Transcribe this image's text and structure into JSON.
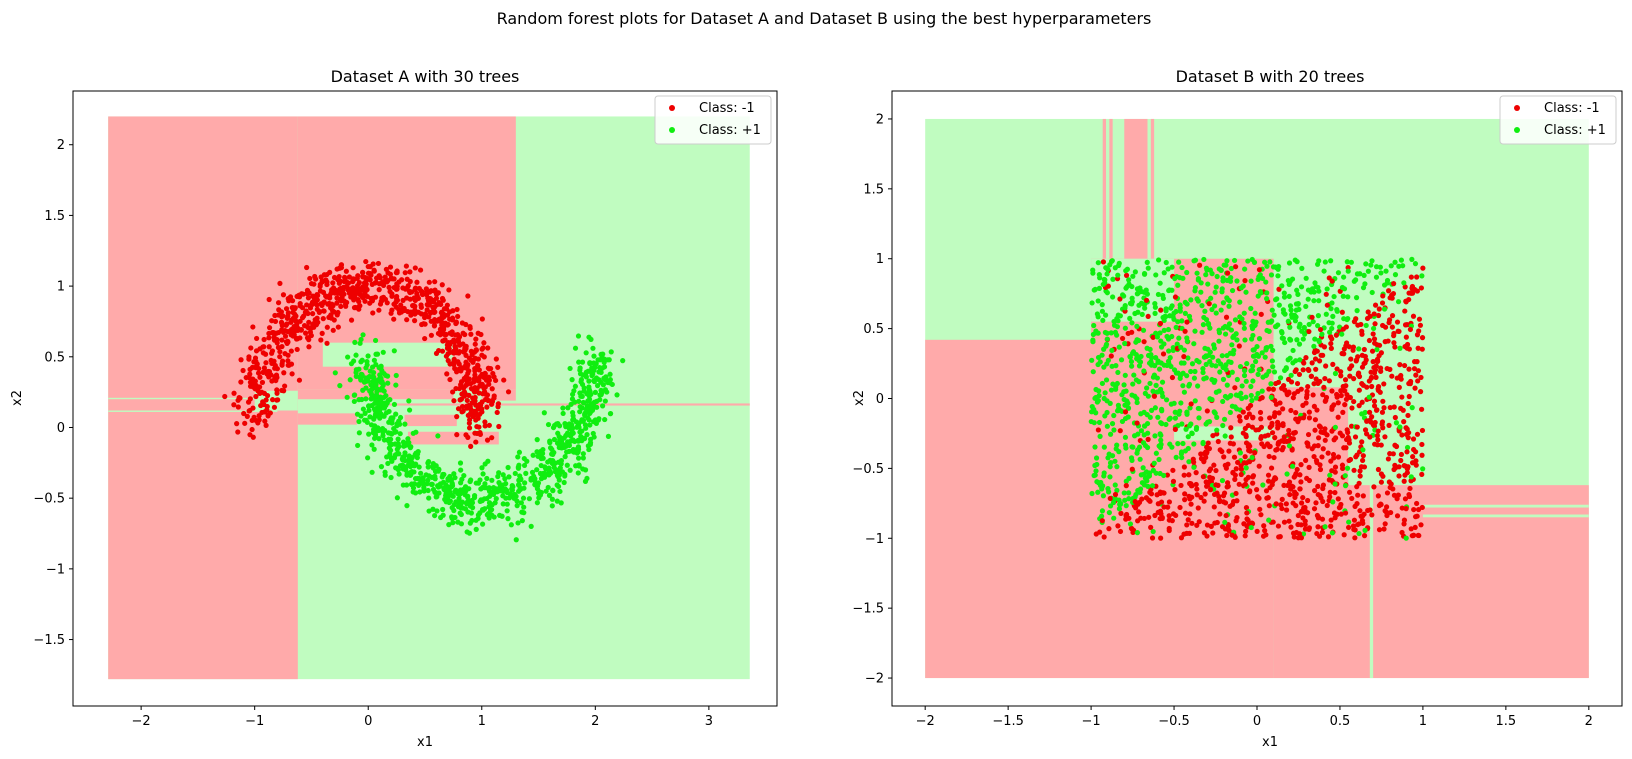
{
  "figure": {
    "suptitle": "Random forest plots for Dataset A and Dataset B using the best hyperparameters"
  },
  "colors": {
    "region_neg": "#ffaaaa",
    "region_pos": "#c0fcc0",
    "point_neg": "#ee0000",
    "point_pos": "#10ee10"
  },
  "chart_data": [
    {
      "type": "scatter",
      "title": "Dataset A with 30 trees",
      "xlabel": "x1",
      "ylabel": "x2",
      "xlim": [
        -2.6,
        3.6
      ],
      "ylim": [
        -1.97,
        2.38
      ],
      "xticks": [
        -2,
        -1,
        0,
        1,
        2,
        3
      ],
      "yticks": [
        -1.5,
        -1.0,
        -0.5,
        0.0,
        0.5,
        1.0,
        1.5,
        2.0
      ],
      "grid": false,
      "legend_position": "top-right",
      "legend": [
        "Class: -1",
        "Class: +1"
      ],
      "series": [
        {
          "name": "Class: -1",
          "shape": "upper half moon",
          "center": [
            0.0,
            0.0
          ],
          "radius": 1.0,
          "noise": 0.1,
          "x_range": [
            -1.27,
            1.25
          ],
          "y_range": [
            -0.16,
            1.18
          ],
          "approx_count": 900
        },
        {
          "name": "Class: +1",
          "shape": "lower half moon",
          "center": [
            1.0,
            0.5
          ],
          "radius": 1.0,
          "noise": 0.1,
          "x_range": [
            -0.23,
            2.35
          ],
          "y_range": [
            -0.77,
            0.65
          ],
          "approx_count": 900
        }
      ],
      "decision_regions": {
        "extent": {
          "x": [
            -2.29,
            3.36
          ],
          "y": [
            -1.78,
            2.2
          ]
        },
        "background_class": "Class: +1",
        "rects_class_neg": [
          [
            -2.29,
            -0.62,
            -1.78,
            2.2
          ],
          [
            -0.62,
            1.3,
            0.27,
            2.2
          ],
          [
            -0.62,
            0.75,
            0.2,
            0.27
          ],
          [
            1.0,
            1.3,
            0.19,
            0.27
          ],
          [
            0.32,
            0.78,
            0.01,
            0.09
          ],
          [
            0.35,
            1.15,
            -0.12,
            -0.03
          ],
          [
            -0.62,
            -0.1,
            0.02,
            0.1
          ],
          [
            0.0,
            3.36,
            0.155,
            0.17
          ]
        ],
        "rects_class_pos": [
          [
            -0.4,
            0.75,
            0.43,
            0.6
          ],
          [
            -2.29,
            -0.8,
            0.2,
            0.21
          ],
          [
            -2.29,
            -0.8,
            0.11,
            0.12
          ],
          [
            -1.0,
            -0.62,
            0.12,
            0.26
          ]
        ]
      }
    },
    {
      "type": "scatter",
      "title": "Dataset B with 20 trees",
      "xlabel": "x1",
      "ylabel": "x2",
      "xlim": [
        -2.2,
        2.2
      ],
      "ylim": [
        -2.2,
        2.2
      ],
      "xticks": [
        -2.0,
        -1.5,
        -1.0,
        -0.5,
        0.0,
        0.5,
        1.0,
        1.5,
        2.0
      ],
      "yticks": [
        -2.0,
        -1.5,
        -1.0,
        -0.5,
        0.0,
        0.5,
        1.0,
        1.5,
        2.0
      ],
      "grid": false,
      "legend_position": "top-right",
      "legend": [
        "Class: -1",
        "Class: +1"
      ],
      "series": [
        {
          "name": "Class: -1",
          "shape": "uniform square, below diagonal",
          "x_range": [
            -1.0,
            1.0
          ],
          "y_range": [
            -1.0,
            1.0
          ],
          "approx_count": 1000
        },
        {
          "name": "Class: +1",
          "shape": "uniform square, above diagonal",
          "x_range": [
            -1.0,
            1.0
          ],
          "y_range": [
            -1.0,
            1.0
          ],
          "approx_count": 1000
        }
      ],
      "decision_regions": {
        "extent": {
          "x": [
            -2.0,
            2.0
          ],
          "y": [
            -2.0,
            2.0
          ]
        },
        "background_class": "Class: +1",
        "rects_class_neg": [
          [
            -2.0,
            0.1,
            -2.0,
            0.42
          ],
          [
            0.1,
            2.0,
            -2.0,
            -0.62
          ],
          [
            -1.0,
            0.1,
            0.42,
            1.0
          ],
          [
            0.1,
            0.55,
            -0.62,
            0.08
          ],
          [
            -0.8,
            -0.66,
            1.0,
            2.0
          ],
          [
            -0.93,
            -0.91,
            1.0,
            2.0
          ],
          [
            -0.89,
            -0.87,
            1.0,
            2.0
          ],
          [
            -0.64,
            -0.62,
            1.0,
            2.0
          ]
        ],
        "rects_class_pos": [
          [
            -1.0,
            -0.5,
            0.55,
            1.0
          ],
          [
            0.1,
            0.6,
            0.12,
            0.55
          ],
          [
            0.55,
            1.0,
            -0.55,
            0.1
          ],
          [
            0.68,
            0.7,
            -2.0,
            -0.62
          ],
          [
            1.0,
            2.0,
            -0.78,
            -0.76
          ],
          [
            1.0,
            2.0,
            -0.85,
            -0.83
          ],
          [
            -0.5,
            0.1,
            -0.3,
            -0.2
          ]
        ]
      }
    }
  ]
}
